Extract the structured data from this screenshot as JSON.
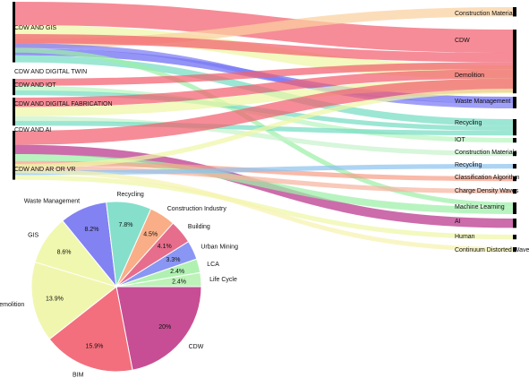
{
  "chart_data": [
    {
      "type": "sankey",
      "sources": [
        {
          "name": "CDW AND GIS"
        },
        {
          "name": "CDW AND DIGITAL TWIN"
        },
        {
          "name": "CDW AND IOT"
        },
        {
          "name": "CDW AND DIGITAL FABRICATION"
        },
        {
          "name": "CDW AND AI"
        },
        {
          "name": "CDW AND AR OR VR"
        }
      ],
      "targets": [
        {
          "name": "Construction Material"
        },
        {
          "name": "CDW"
        },
        {
          "name": "Demolition"
        },
        {
          "name": "Waste Management"
        },
        {
          "name": "Recycling"
        },
        {
          "name": "IOT"
        },
        {
          "name": "Construction Materials"
        },
        {
          "name": "Recycling"
        },
        {
          "name": "Classification Algorithm"
        },
        {
          "name": "Charge Density Waves"
        },
        {
          "name": "Machine Learning"
        },
        {
          "name": "AI"
        },
        {
          "name": "Human"
        },
        {
          "name": "Continuum Distorted Wave"
        }
      ],
      "links": [
        {
          "source": 0,
          "target": 1,
          "value": 5,
          "color": "#f25f6f"
        },
        {
          "source": 0,
          "target": 2,
          "value": 3,
          "color": "#eef7a6"
        },
        {
          "source": 0,
          "target": 0,
          "value": 2,
          "color": "#fbd0a0"
        },
        {
          "source": 0,
          "target": 3,
          "value": 1.5,
          "color": "#6b6bf2"
        },
        {
          "source": 0,
          "target": 4,
          "value": 1.5,
          "color": "#76dcc4"
        },
        {
          "source": 1,
          "target": 1,
          "value": 2,
          "color": "#f25f6f"
        },
        {
          "source": 1,
          "target": 3,
          "value": 1,
          "color": "#7a7af5"
        },
        {
          "source": 1,
          "target": 10,
          "value": 1,
          "color": "#9df0a8"
        },
        {
          "source": 2,
          "target": 1,
          "value": 1.5,
          "color": "#f25f6f"
        },
        {
          "source": 2,
          "target": 5,
          "value": 1,
          "color": "#b9f5c0"
        },
        {
          "source": 2,
          "target": 4,
          "value": 1,
          "color": "#76dcc4"
        },
        {
          "source": 3,
          "target": 1,
          "value": 2,
          "color": "#f25f6f"
        },
        {
          "source": 3,
          "target": 2,
          "value": 2,
          "color": "#eef7a6"
        },
        {
          "source": 3,
          "target": 6,
          "value": 1,
          "color": "#c7f3cc"
        },
        {
          "source": 3,
          "target": 4,
          "value": 1,
          "color": "#76dcc4"
        },
        {
          "source": 4,
          "target": 1,
          "value": 3,
          "color": "#f25f6f"
        },
        {
          "source": 4,
          "target": 11,
          "value": 2,
          "color": "#b8338a"
        },
        {
          "source": 4,
          "target": 10,
          "value": 1.5,
          "color": "#9df0a8"
        },
        {
          "source": 4,
          "target": 8,
          "value": 1,
          "color": "#f6a088"
        },
        {
          "source": 4,
          "target": 9,
          "value": 1,
          "color": "#f6b4a0"
        },
        {
          "source": 4,
          "target": 7,
          "value": 1,
          "color": "#8fc4f0"
        },
        {
          "source": 4,
          "target": 12,
          "value": 1,
          "color": "#eef7a6"
        },
        {
          "source": 5,
          "target": 2,
          "value": 1,
          "color": "#eef7a6"
        },
        {
          "source": 5,
          "target": 13,
          "value": 1,
          "color": "#f7f3b0"
        }
      ]
    },
    {
      "type": "pie",
      "slices": [
        {
          "label": "CDW",
          "value": 20,
          "value_label": "20%",
          "color": "#c13b8a"
        },
        {
          "label": "BIM",
          "value": 15.9,
          "value_label": "15.9%",
          "color": "#f25f6f"
        },
        {
          "label": "Demolition",
          "value": 13.9,
          "value_label": "13.9%",
          "color": "#f0f5a6"
        },
        {
          "label": "GIS",
          "value": 8.6,
          "value_label": "8.6%",
          "color": "#eef7a6"
        },
        {
          "label": "Waste Management",
          "value": 8.2,
          "value_label": "8.2%",
          "color": "#7474f2"
        },
        {
          "label": "Recycling",
          "value": 7.8,
          "value_label": "7.8%",
          "color": "#78dcc5"
        },
        {
          "label": "Construction Industry",
          "value": 4.5,
          "value_label": "4.5%",
          "color": "#f8a57a"
        },
        {
          "label": "Building",
          "value": 4.1,
          "value_label": "4.1%",
          "color": "#e45d80"
        },
        {
          "label": "Urban Mining",
          "value": 3.3,
          "value_label": "3.3%",
          "color": "#7d8bf2"
        },
        {
          "label": "LCA",
          "value": 2.4,
          "value_label": "2.4%",
          "color": "#a7f0a8"
        },
        {
          "label": "Life Cycle",
          "value": 2.4,
          "value_label": "2.4%",
          "color": "#b6f1b0"
        }
      ]
    }
  ]
}
